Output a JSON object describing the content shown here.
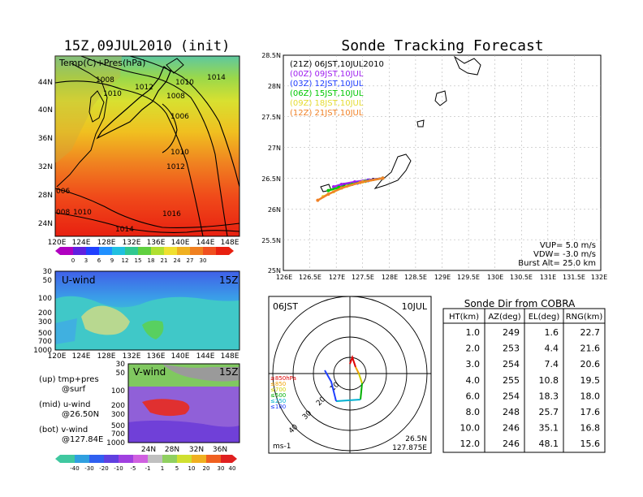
{
  "header": {
    "left_title": "15Z,09JUL2010 (init)",
    "right_title": "Sonde Tracking Forecast"
  },
  "map_panel": {
    "label": "Temp(C)+Pres(hPa)",
    "lat_ticks": [
      "44N",
      "40N",
      "36N",
      "32N",
      "28N",
      "24N"
    ],
    "lon_ticks": [
      "120E",
      "124E",
      "128E",
      "132E",
      "136E",
      "140E",
      "144E",
      "148E"
    ],
    "colorbar_values": [
      "0",
      "3",
      "6",
      "9",
      "12",
      "15",
      "18",
      "21",
      "24",
      "27",
      "30"
    ],
    "isobar_labels": [
      "1008",
      "1012",
      "1010",
      "1014",
      "1010",
      "1008",
      "1006",
      "1010",
      "1012",
      "1016",
      "1014",
      "006",
      "008",
      "1010"
    ]
  },
  "u_panel": {
    "label": "U-wind",
    "time": "15Z",
    "y_ticks": [
      "30",
      "50",
      "100",
      "200",
      "300",
      "500",
      "700",
      "1000"
    ],
    "x_ticks": [
      "120E",
      "124E",
      "128E",
      "132E",
      "136E",
      "140E",
      "144E",
      "148E"
    ]
  },
  "v_panel": {
    "label": "V-wind",
    "time": "15Z",
    "y_ticks": [
      "30",
      "50",
      "100",
      "200",
      "300",
      "500",
      "700",
      "1000"
    ],
    "x_ticks": [
      "24N",
      "28N",
      "32N",
      "36N"
    ]
  },
  "notes": [
    "(up) tmp+pres",
    "@surf",
    "(mid) u-wind",
    "@26.50N",
    "(bot) v-wind",
    "@127.84E"
  ],
  "wind_colorbar": [
    "-40",
    "-30",
    "-20",
    "-10",
    "-5",
    "-1",
    "1",
    "5",
    "10",
    "20",
    "30",
    "40"
  ],
  "track_panel": {
    "lat_ticks": [
      "28.5N",
      "28N",
      "27.5N",
      "27N",
      "26.5N",
      "26N",
      "25.5N",
      "25N"
    ],
    "lon_ticks": [
      "126E",
      "126.5E",
      "127E",
      "127.5E",
      "128E",
      "128.5E",
      "129E",
      "129.5E",
      "130E",
      "130.5E",
      "131E",
      "131.5E",
      "132E"
    ],
    "legend": [
      {
        "text": "(21Z) 06JST,10JUL2010",
        "color": "#000000"
      },
      {
        "text": "(00Z) 09JST,10JUL",
        "color": "#a020f0"
      },
      {
        "text": "(03Z) 12JST,10JUL",
        "color": "#1e3cff"
      },
      {
        "text": "(06Z) 15JST,10JUL",
        "color": "#00c800"
      },
      {
        "text": "(09Z) 18JST,10JUL",
        "color": "#e6dc32"
      },
      {
        "text": "(12Z) 21JST,10JUL",
        "color": "#f08228"
      }
    ],
    "params": [
      "VUP= 5.0 m/s",
      "VDW= -3.0 m/s",
      "Burst Alt= 25.0 km"
    ]
  },
  "polar_panel": {
    "time": "06JST",
    "date": "10JUL",
    "ring_labels": [
      "10",
      "20",
      "30",
      "40"
    ],
    "levels": [
      {
        "text": "≥850hPa",
        "color": "#e00000"
      },
      {
        "text": "≤850",
        "color": "#f0a000"
      },
      {
        "text": "≤700",
        "color": "#d0d000"
      },
      {
        "text": "≤500",
        "color": "#00b000"
      },
      {
        "text": "≤250",
        "color": "#00b0d0"
      },
      {
        "text": "≤100",
        "color": "#2040ff"
      }
    ],
    "unit": "ms-1",
    "loc_lat": "26.5N",
    "loc_lon": "127.875E"
  },
  "cobra_table": {
    "title": "Sonde Dir from COBRA",
    "headers": [
      "HT(km)",
      "AZ(deg)",
      "EL(deg)",
      "RNG(km)"
    ],
    "rows": [
      [
        "1.0",
        "249",
        "1.6",
        "22.7"
      ],
      [
        "2.0",
        "253",
        "4.4",
        "21.6"
      ],
      [
        "3.0",
        "254",
        "7.4",
        "20.6"
      ],
      [
        "4.0",
        "255",
        "10.8",
        "19.5"
      ],
      [
        "6.0",
        "254",
        "18.3",
        "18.0"
      ],
      [
        "8.0",
        "248",
        "25.7",
        "17.6"
      ],
      [
        "10.0",
        "246",
        "35.1",
        "16.8"
      ],
      [
        "12.0",
        "246",
        "48.1",
        "15.6"
      ]
    ]
  },
  "chart_data": [
    {
      "type": "table",
      "title": "Sonde Dir from COBRA",
      "columns": [
        "HT(km)",
        "AZ(deg)",
        "EL(deg)",
        "RNG(km)"
      ],
      "rows": [
        [
          1.0,
          249,
          1.6,
          22.7
        ],
        [
          2.0,
          253,
          4.4,
          21.6
        ],
        [
          3.0,
          254,
          7.4,
          20.6
        ],
        [
          4.0,
          255,
          10.8,
          19.5
        ],
        [
          6.0,
          254,
          18.3,
          18.0
        ],
        [
          8.0,
          248,
          25.7,
          17.6
        ],
        [
          10.0,
          246,
          35.1,
          16.8
        ],
        [
          12.0,
          246,
          48.1,
          15.6
        ]
      ]
    },
    {
      "type": "line",
      "title": "Sonde Tracking Forecast",
      "xlim": [
        126,
        132
      ],
      "ylim": [
        25,
        28.5
      ],
      "series": [
        {
          "name": "(21Z) 06JST,10JUL2010",
          "color": "#000000",
          "x": [
            127.88,
            127.7,
            127.5,
            127.3,
            127.15
          ],
          "y": [
            26.5,
            26.48,
            26.45,
            26.42,
            26.4
          ]
        },
        {
          "name": "(00Z) 09JST,10JUL",
          "color": "#a020f0",
          "x": [
            127.88,
            127.6,
            127.35,
            127.1,
            126.95
          ],
          "y": [
            26.5,
            26.47,
            26.44,
            26.4,
            26.36
          ]
        },
        {
          "name": "(03Z) 12JST,10JUL",
          "color": "#1e3cff",
          "x": [
            127.88,
            127.6,
            127.4,
            127.2,
            127.05
          ],
          "y": [
            26.5,
            26.46,
            26.42,
            26.38,
            26.35
          ]
        },
        {
          "name": "(06Z) 15JST,10JUL",
          "color": "#00c800",
          "x": [
            127.88,
            127.55,
            127.3,
            127.05,
            126.85
          ],
          "y": [
            26.5,
            26.45,
            26.4,
            26.35,
            26.3
          ]
        },
        {
          "name": "(09Z) 18JST,10JUL",
          "color": "#e6dc32",
          "x": [
            127.88,
            127.5,
            127.2,
            126.95,
            126.75
          ],
          "y": [
            26.5,
            26.44,
            26.37,
            26.28,
            26.2
          ]
        },
        {
          "name": "(12Z) 21JST,10JUL",
          "color": "#f08228",
          "x": [
            127.88,
            127.45,
            127.1,
            126.85,
            126.65
          ],
          "y": [
            26.5,
            26.43,
            26.34,
            26.24,
            26.14
          ]
        }
      ]
    }
  ]
}
